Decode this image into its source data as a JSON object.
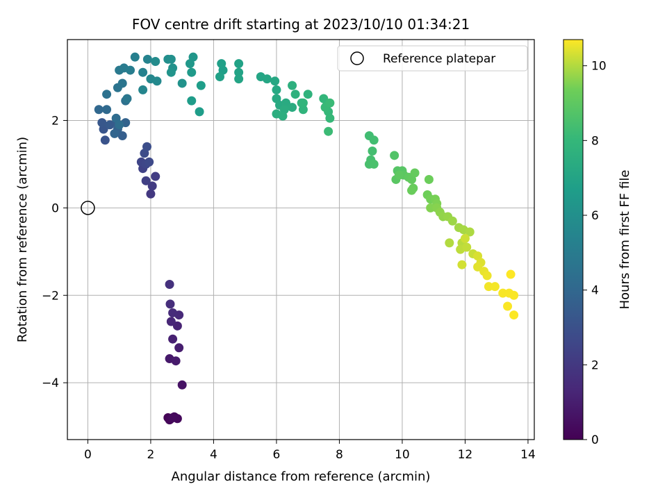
{
  "chart_data": {
    "type": "scatter",
    "title": "FOV centre drift starting at 2023/10/10 01:34:21",
    "xlabel": "Angular distance from reference (arcmin)",
    "ylabel": "Rotation from reference (arcmin)",
    "xlim": [
      -0.65,
      14.2
    ],
    "ylim": [
      -5.3,
      3.85
    ],
    "xticks": [
      0,
      2,
      4,
      6,
      8,
      10,
      12,
      14
    ],
    "yticks": [
      -4,
      -2,
      0,
      2
    ],
    "xtick_labels": [
      "0",
      "2",
      "4",
      "6",
      "8",
      "10",
      "12",
      "14"
    ],
    "ytick_labels": [
      "−4",
      "−2",
      "0",
      "2"
    ],
    "grid": true,
    "legend": {
      "position": "top-right",
      "entries": [
        {
          "label": "Reference platepar",
          "marker": "open-circle"
        }
      ]
    },
    "reference_point": {
      "x": 0,
      "y": 0
    },
    "colorbar": {
      "label": "Hours from first FF file",
      "colormap": "viridis",
      "range": [
        0,
        10.7
      ],
      "ticks": [
        0,
        2,
        4,
        6,
        8,
        10
      ],
      "tick_labels": [
        "0",
        "2",
        "4",
        "6",
        "8",
        "10"
      ]
    },
    "series": [
      {
        "colored_by": "hours",
        "points": [
          [
            2.55,
            -4.8,
            0.05
          ],
          [
            2.65,
            -4.82,
            0.1
          ],
          [
            2.75,
            -4.78,
            0.15
          ],
          [
            2.6,
            -4.85,
            0.2
          ],
          [
            2.85,
            -4.82,
            0.25
          ],
          [
            2.7,
            -4.8,
            0.3
          ],
          [
            3.0,
            -4.05,
            0.6
          ],
          [
            2.6,
            -3.45,
            0.8
          ],
          [
            2.8,
            -3.5,
            0.9
          ],
          [
            2.9,
            -3.2,
            1.0
          ],
          [
            2.7,
            -3.0,
            1.1
          ],
          [
            2.85,
            -2.7,
            1.2
          ],
          [
            2.65,
            -2.6,
            1.3
          ],
          [
            2.9,
            -2.45,
            1.4
          ],
          [
            2.7,
            -2.4,
            1.5
          ],
          [
            2.62,
            -2.2,
            1.6
          ],
          [
            2.6,
            -1.75,
            1.7
          ],
          [
            2.0,
            0.32,
            2.0
          ],
          [
            2.05,
            0.5,
            2.1
          ],
          [
            2.15,
            0.72,
            2.2
          ],
          [
            1.85,
            0.62,
            2.3
          ],
          [
            1.75,
            0.9,
            2.4
          ],
          [
            1.7,
            1.05,
            2.5
          ],
          [
            1.85,
            1.0,
            2.6
          ],
          [
            1.95,
            1.05,
            2.7
          ],
          [
            1.8,
            1.25,
            2.8
          ],
          [
            1.88,
            1.4,
            2.9
          ],
          [
            0.55,
            1.55,
            3.1
          ],
          [
            0.5,
            1.8,
            3.2
          ],
          [
            0.45,
            1.95,
            3.3
          ],
          [
            0.7,
            1.9,
            3.4
          ],
          [
            0.9,
            1.95,
            3.5
          ],
          [
            1.1,
            1.65,
            3.6
          ],
          [
            0.95,
            1.8,
            3.7
          ],
          [
            1.2,
            1.95,
            3.8
          ],
          [
            0.85,
            1.7,
            3.9
          ],
          [
            0.35,
            2.25,
            4.0
          ],
          [
            0.6,
            2.25,
            4.1
          ],
          [
            0.9,
            2.05,
            4.2
          ],
          [
            1.0,
            1.9,
            4.3
          ],
          [
            1.2,
            2.45,
            4.4
          ],
          [
            0.6,
            2.6,
            4.5
          ],
          [
            0.95,
            2.75,
            4.6
          ],
          [
            1.1,
            2.85,
            4.7
          ],
          [
            1.25,
            2.5,
            4.8
          ],
          [
            1.0,
            3.15,
            4.9
          ],
          [
            1.15,
            3.2,
            5.0
          ],
          [
            1.35,
            3.15,
            5.1
          ],
          [
            1.5,
            3.45,
            5.2
          ],
          [
            1.75,
            3.1,
            5.3
          ],
          [
            1.9,
            3.4,
            5.4
          ],
          [
            1.75,
            2.7,
            5.5
          ],
          [
            2.0,
            2.95,
            5.6
          ],
          [
            2.2,
            2.9,
            5.7
          ],
          [
            2.15,
            3.35,
            5.8
          ],
          [
            2.55,
            3.4,
            5.9
          ],
          [
            2.65,
            3.4,
            6.0
          ],
          [
            2.7,
            3.2,
            6.05
          ],
          [
            3.0,
            2.85,
            6.1
          ],
          [
            2.65,
            3.1,
            6.2
          ],
          [
            3.35,
            3.45,
            6.3
          ],
          [
            3.25,
            3.3,
            6.4
          ],
          [
            3.3,
            3.1,
            6.5
          ],
          [
            3.3,
            2.45,
            6.6
          ],
          [
            3.55,
            2.2,
            6.65
          ],
          [
            3.6,
            2.8,
            6.7
          ],
          [
            4.3,
            3.15,
            6.75
          ],
          [
            4.25,
            3.3,
            6.8
          ],
          [
            4.2,
            3.0,
            6.85
          ],
          [
            4.8,
            3.3,
            6.9
          ],
          [
            4.8,
            3.1,
            6.95
          ],
          [
            4.8,
            2.95,
            7.0
          ],
          [
            5.5,
            3.0,
            7.05
          ],
          [
            5.7,
            2.95,
            7.1
          ],
          [
            5.95,
            2.9,
            7.15
          ],
          [
            6.0,
            2.7,
            7.2
          ],
          [
            6.0,
            2.5,
            7.25
          ],
          [
            6.1,
            2.35,
            7.3
          ],
          [
            6.3,
            2.4,
            7.35
          ],
          [
            6.5,
            2.3,
            7.4
          ],
          [
            6.25,
            2.25,
            7.45
          ],
          [
            6.0,
            2.15,
            7.5
          ],
          [
            6.2,
            2.1,
            7.55
          ],
          [
            6.5,
            2.8,
            7.6
          ],
          [
            6.6,
            2.6,
            7.65
          ],
          [
            6.8,
            2.4,
            7.7
          ],
          [
            7.0,
            2.6,
            7.75
          ],
          [
            6.85,
            2.25,
            7.8
          ],
          [
            6.85,
            2.4,
            7.85
          ],
          [
            7.5,
            2.5,
            7.9
          ],
          [
            7.6,
            2.35,
            7.95
          ],
          [
            7.65,
            2.2,
            8.0
          ],
          [
            7.7,
            2.05,
            8.05
          ],
          [
            7.55,
            2.3,
            8.1
          ],
          [
            7.7,
            2.4,
            8.15
          ],
          [
            7.65,
            1.75,
            8.2
          ],
          [
            8.95,
            1.65,
            8.3
          ],
          [
            9.1,
            1.55,
            8.35
          ],
          [
            9.05,
            1.3,
            8.4
          ],
          [
            9.0,
            1.1,
            8.45
          ],
          [
            8.95,
            1.0,
            8.5
          ],
          [
            9.1,
            1.0,
            8.55
          ],
          [
            9.75,
            1.2,
            8.7
          ],
          [
            9.85,
            0.85,
            8.8
          ],
          [
            10.0,
            0.85,
            8.85
          ],
          [
            9.8,
            0.65,
            8.9
          ],
          [
            10.05,
            0.75,
            8.95
          ],
          [
            9.9,
            0.75,
            9.0
          ],
          [
            10.2,
            0.7,
            9.05
          ],
          [
            10.3,
            0.65,
            9.1
          ],
          [
            10.4,
            0.8,
            9.15
          ],
          [
            10.35,
            0.45,
            9.2
          ],
          [
            10.3,
            0.4,
            9.25
          ],
          [
            10.85,
            0.65,
            9.3
          ],
          [
            10.8,
            0.3,
            9.35
          ],
          [
            10.9,
            0.2,
            9.4
          ],
          [
            11.05,
            0.2,
            9.45
          ],
          [
            11.1,
            0.1,
            9.5
          ],
          [
            10.9,
            0.0,
            9.55
          ],
          [
            11.1,
            0.0,
            9.6
          ],
          [
            11.2,
            -0.1,
            9.65
          ],
          [
            11.3,
            -0.2,
            9.7
          ],
          [
            11.45,
            -0.2,
            9.75
          ],
          [
            11.6,
            -0.3,
            9.8
          ],
          [
            11.8,
            -0.45,
            9.85
          ],
          [
            11.95,
            -0.5,
            9.9
          ],
          [
            12.15,
            -0.55,
            9.95
          ],
          [
            11.5,
            -0.8,
            10.0
          ],
          [
            11.9,
            -0.8,
            10.05
          ],
          [
            11.85,
            -0.95,
            10.1
          ],
          [
            12.05,
            -0.9,
            10.15
          ],
          [
            12.25,
            -1.05,
            10.2
          ],
          [
            12.0,
            -0.7,
            10.25
          ],
          [
            11.9,
            -1.3,
            10.3
          ],
          [
            12.4,
            -1.1,
            10.35
          ],
          [
            12.5,
            -1.25,
            10.4
          ],
          [
            12.4,
            -1.35,
            10.45
          ],
          [
            12.6,
            -1.45,
            10.5
          ],
          [
            12.7,
            -1.55,
            10.55
          ],
          [
            12.75,
            -1.8,
            10.6
          ],
          [
            12.95,
            -1.8,
            10.62
          ],
          [
            13.2,
            -1.95,
            10.64
          ],
          [
            13.4,
            -1.95,
            10.65
          ],
          [
            13.55,
            -2.0,
            10.66
          ],
          [
            13.35,
            -2.25,
            10.67
          ],
          [
            13.55,
            -2.45,
            10.68
          ],
          [
            13.45,
            -1.52,
            10.7
          ]
        ]
      }
    ]
  }
}
